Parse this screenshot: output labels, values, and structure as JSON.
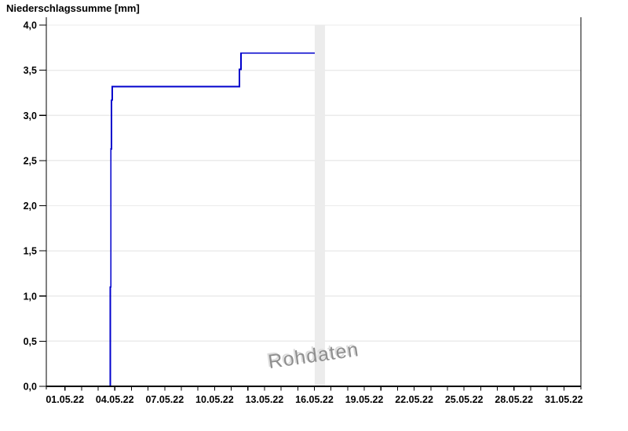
{
  "window": {
    "background": "#ffffff"
  },
  "chart": {
    "title": "Niederschlagssumme [mm]",
    "watermark": "Rohdaten",
    "colors": {
      "line": "#0000cc",
      "grid": "#ebebeb",
      "band": "#ececec",
      "axis": "#000000",
      "tick_text": "#000000",
      "watermark": "#8f8f8f"
    }
  },
  "chart_data": {
    "type": "line",
    "subtype": "step-cumulative",
    "title": "Niederschlagssumme [mm]",
    "xlabel": "",
    "ylabel": "Niederschlagssumme [mm]",
    "grid": "horizontal-only",
    "legend": "none",
    "watermark": "Rohdaten",
    "x_axis": {
      "tick_labels": [
        "01.05.22",
        "04.05.22",
        "07.05.22",
        "10.05.22",
        "13.05.22",
        "16.05.22",
        "19.05.22",
        "22.05.22",
        "25.05.22",
        "28.05.22",
        "31.05.22"
      ],
      "tick_day_offsets": [
        0,
        3,
        6,
        9,
        12,
        15,
        18,
        21,
        24,
        27,
        30
      ],
      "minor_tick_every_days": 1,
      "minor_tick_day_range": [
        0,
        30
      ],
      "range_days": [
        -1.12,
        31.02
      ]
    },
    "y_axis": {
      "tick_labels": [
        "0,0",
        "0,5",
        "1,0",
        "1,5",
        "2,0",
        "2,5",
        "3,0",
        "3,5",
        "4,0"
      ],
      "tick_values": [
        0,
        0.5,
        1,
        1.5,
        2,
        2.5,
        3,
        3.5,
        4
      ],
      "range": [
        0,
        4.1
      ]
    },
    "series": [
      {
        "name": "Niederschlagssumme",
        "color": "#0000cc",
        "points_day_value": [
          [
            2.73,
            0.0
          ],
          [
            2.73,
            1.1
          ],
          [
            2.76,
            1.1
          ],
          [
            2.76,
            2.63
          ],
          [
            2.8,
            2.63
          ],
          [
            2.8,
            3.17
          ],
          [
            2.84,
            3.17
          ],
          [
            2.84,
            3.32
          ],
          [
            2.9,
            3.32
          ],
          [
            10.49,
            3.32
          ],
          [
            10.49,
            3.51
          ],
          [
            10.58,
            3.51
          ],
          [
            10.58,
            3.69
          ],
          [
            15.02,
            3.69
          ]
        ],
        "readable_summary": [
          [
            "01.05.22",
            0.0
          ],
          [
            "03.05.22",
            0.0
          ],
          [
            "04.05.22",
            3.3
          ],
          [
            "11.05.22",
            3.3
          ],
          [
            "12.05.22",
            3.7
          ],
          [
            "16.05.22",
            3.7
          ]
        ]
      }
    ],
    "band": {
      "start_day": 15.02,
      "end_day": 15.64,
      "color": "#ececec",
      "meaning": "shaded vertical band at end of data (16.05.22)"
    }
  }
}
